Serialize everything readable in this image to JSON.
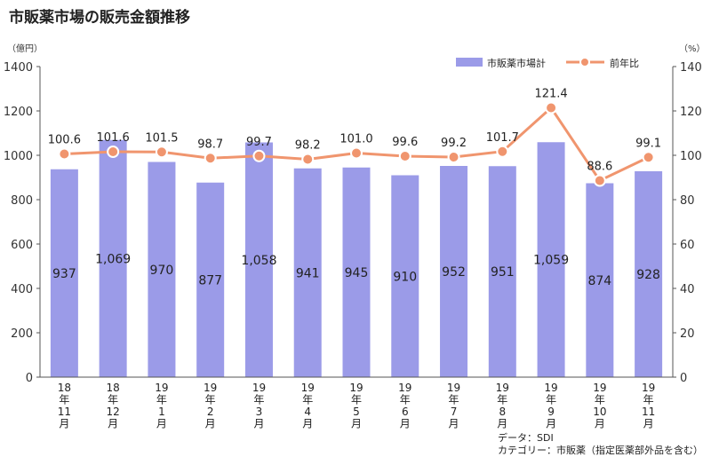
{
  "title": "市販薬市場の販売金額推移",
  "source": {
    "line1": "データ：SDI",
    "line2": "カテゴリー：市販薬（指定医薬部外品を含む）"
  },
  "colors": {
    "bar": "#9b9be8",
    "line": "#f0956e",
    "marker_fill": "#f0956e",
    "marker_stroke": "#ffffff",
    "axis": "#555555"
  },
  "chart_data": {
    "type": "bar",
    "categories": [
      [
        "18",
        "年",
        "11",
        "月"
      ],
      [
        "18",
        "年",
        "12",
        "月"
      ],
      [
        "19",
        "年",
        "1",
        "月"
      ],
      [
        "19",
        "年",
        "2",
        "月"
      ],
      [
        "19",
        "年",
        "3",
        "月"
      ],
      [
        "19",
        "年",
        "4",
        "月"
      ],
      [
        "19",
        "年",
        "5",
        "月"
      ],
      [
        "19",
        "年",
        "6",
        "月"
      ],
      [
        "19",
        "年",
        "7",
        "月"
      ],
      [
        "19",
        "年",
        "8",
        "月"
      ],
      [
        "19",
        "年",
        "9",
        "月"
      ],
      [
        "19",
        "年",
        "10",
        "月"
      ],
      [
        "19",
        "年",
        "11",
        "月"
      ]
    ],
    "series": [
      {
        "name": "市販薬市場計",
        "type": "bar",
        "axis": "left",
        "values": [
          937,
          1069,
          970,
          877,
          1058,
          941,
          945,
          910,
          952,
          951,
          1059,
          874,
          928
        ],
        "labels": [
          "937",
          "1,069",
          "970",
          "877",
          "1,058",
          "941",
          "945",
          "910",
          "952",
          "951",
          "1,059",
          "874",
          "928"
        ]
      },
      {
        "name": "前年比",
        "type": "line",
        "axis": "right",
        "values": [
          100.6,
          101.6,
          101.5,
          98.7,
          99.7,
          98.2,
          101.0,
          99.6,
          99.2,
          101.7,
          121.4,
          88.6,
          99.1
        ],
        "labels": [
          "100.6",
          "101.6",
          "101.5",
          "98.7",
          "99.7",
          "98.2",
          "101.0",
          "99.6",
          "99.2",
          "101.7",
          "121.4",
          "88.6",
          "99.1"
        ]
      }
    ],
    "y_left": {
      "unit_label": "（億円）",
      "ylim": [
        0,
        1400
      ],
      "ticks": [
        "0",
        "200",
        "400",
        "600",
        "800",
        "1000",
        "1200",
        "1400"
      ]
    },
    "y_right": {
      "unit_label": "（%）",
      "ylim": [
        0,
        140
      ],
      "ticks": [
        "0",
        "20",
        "40",
        "60",
        "80",
        "100",
        "120",
        "140"
      ]
    },
    "legend_position": "top-right",
    "grid": false
  }
}
